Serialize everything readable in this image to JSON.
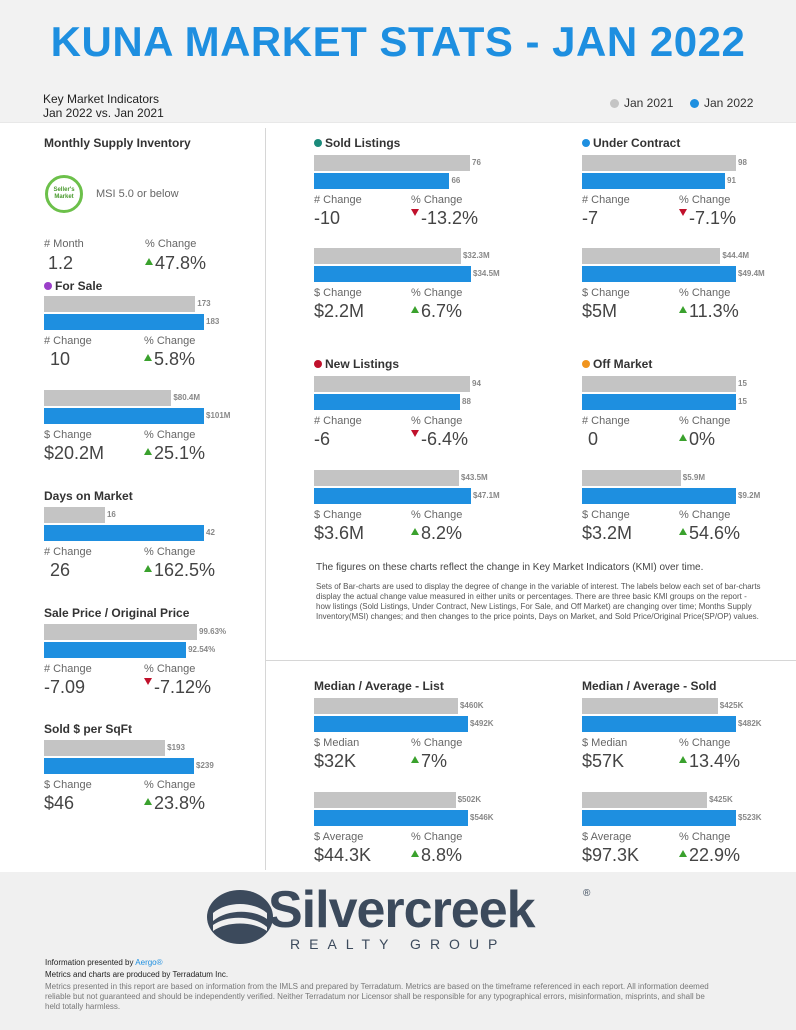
{
  "title": "KUNA MARKET STATS - JAN 2022",
  "kmi": {
    "line1": "Key Market Indicators",
    "line2": "Jan 2022 vs. Jan 2021"
  },
  "legend": {
    "jan2021": "Jan 2021",
    "jan2022": "Jan 2022",
    "color_2021": "#c4c4c4",
    "color_2022": "#1e8fe0"
  },
  "msi": {
    "title": "Monthly Supply Inventory",
    "badge": "Seller's Market",
    "text": "MSI 5.0 or below",
    "label_month": "# Month",
    "value_month": "1.2",
    "label_pct": "% Change",
    "value_pct": "47.8%"
  },
  "for_sale": {
    "title": "For Sale",
    "dot_color": "#9b3fc9",
    "count": {
      "v2021": "173",
      "v2022": "183",
      "n2021": 173,
      "n2022": 183,
      "label_change": "# Change",
      "change": "10",
      "label_pct": "% Change",
      "pct": "5.8%"
    },
    "dollar": {
      "v2021": "$80.4M",
      "v2022": "$101M",
      "n2021": 80.4,
      "n2022": 101,
      "label_change": "$ Change",
      "change": "$20.2M",
      "label_pct": "% Change",
      "pct": "25.1%"
    }
  },
  "days_on_market": {
    "title": "Days on Market",
    "v2021": "16",
    "v2022": "42",
    "n2021": 16,
    "n2022": 42,
    "label_change": "# Change",
    "change": "26",
    "label_pct": "% Change",
    "pct": "162.5%"
  },
  "sale_price": {
    "title": "Sale Price / Original Price",
    "v2021": "99.63%",
    "v2022": "92.54%",
    "n2021": 99.63,
    "n2022": 92.54,
    "label_change": "# Change",
    "change": "-7.09",
    "label_pct": "% Change",
    "pct": "-7.12%"
  },
  "sold_sqft": {
    "title": "Sold $ per SqFt",
    "v2021": "$193",
    "v2022": "$239",
    "n2021": 193,
    "n2022": 239,
    "label_change": "$ Change",
    "change": "$46",
    "label_pct": "% Change",
    "pct": "23.8%"
  },
  "sold_listings": {
    "title": "Sold Listings",
    "dot_color": "#1a8a7a",
    "count": {
      "v2021": "76",
      "v2022": "66",
      "n2021": 76,
      "n2022": 66,
      "label_change": "# Change",
      "change": "-10",
      "label_pct": "% Change",
      "pct": "-13.2%"
    },
    "dollar": {
      "v2021": "$32.3M",
      "v2022": "$34.5M",
      "n2021": 32.3,
      "n2022": 34.5,
      "label_change": "$ Change",
      "change": "$2.2M",
      "label_pct": "% Change",
      "pct": "6.7%"
    }
  },
  "under_contract": {
    "title": "Under Contract",
    "dot_color": "#1e8fe0",
    "count": {
      "v2021": "98",
      "v2022": "91",
      "n2021": 98,
      "n2022": 91,
      "label_change": "# Change",
      "change": "-7",
      "label_pct": "% Change",
      "pct": "-7.1%"
    },
    "dollar": {
      "v2021": "$44.4M",
      "v2022": "$49.4M",
      "n2021": 44.4,
      "n2022": 49.4,
      "label_change": "$ Change",
      "change": "$5M",
      "label_pct": "% Change",
      "pct": "11.3%"
    }
  },
  "new_listings": {
    "title": "New Listings",
    "dot_color": "#c0102b",
    "count": {
      "v2021": "94",
      "v2022": "88",
      "n2021": 94,
      "n2022": 88,
      "label_change": "# Change",
      "change": "-6",
      "label_pct": "% Change",
      "pct": "-6.4%"
    },
    "dollar": {
      "v2021": "$43.5M",
      "v2022": "$47.1M",
      "n2021": 43.5,
      "n2022": 47.1,
      "label_change": "$ Change",
      "change": "$3.6M",
      "label_pct": "% Change",
      "pct": "8.2%"
    }
  },
  "off_market": {
    "title": "Off Market",
    "dot_color": "#f0941e",
    "count": {
      "v2021": "15",
      "v2022": "15",
      "n2021": 15,
      "n2022": 15,
      "label_change": "# Change",
      "change": "0",
      "label_pct": "% Change",
      "pct": "0%"
    },
    "dollar": {
      "v2021": "$5.9M",
      "v2022": "$9.2M",
      "n2021": 5.9,
      "n2022": 9.2,
      "label_change": "$ Change",
      "change": "$3.2M",
      "label_pct": "% Change",
      "pct": "54.6%"
    }
  },
  "note_main": "The figures on these charts reflect the change in Key Market Indicators (KMI) over time.",
  "note_small": "Sets of Bar-charts are used to display the degree of change in the variable of interest. The labels below each set of bar-charts display the actual change value measured in either units or percentages. There are three basic KMI groups on the report - how listings (Sold Listings, Under Contract, New Listings, For Sale, and Off Market) are changing over time; Months Supply Inventory(MSI) changes; and then changes to the price points, Days on Market, and Sold Price/Original Price(SP/OP) values.",
  "median_list": {
    "title": "Median / Average - List",
    "median": {
      "v2021": "$460K",
      "v2022": "$492K",
      "n2021": 460,
      "n2022": 492,
      "label_change": "$ Median",
      "change": "$32K",
      "label_pct": "% Change",
      "pct": "7%"
    },
    "average": {
      "v2021": "$502K",
      "v2022": "$546K",
      "n2021": 502,
      "n2022": 546,
      "label_change": "$ Average",
      "change": "$44.3K",
      "label_pct": "% Change",
      "pct": "8.8%"
    }
  },
  "median_sold": {
    "title": "Median / Average - Sold",
    "median": {
      "v2021": "$425K",
      "v2022": "$482K",
      "n2021": 425,
      "n2022": 482,
      "label_change": "$ Median",
      "change": "$57K",
      "label_pct": "% Change",
      "pct": "13.4%"
    },
    "average": {
      "v2021": "$425K",
      "v2022": "$523K",
      "n2021": 425,
      "n2022": 523,
      "label_change": "$ Average",
      "change": "$97.3K",
      "label_pct": "% Change",
      "pct": "22.9%"
    }
  },
  "footer": {
    "logo_word": "Silvercreek",
    "logo_reg": "®",
    "logo_sub": "REALTY GROUP",
    "presented_prefix": "Information presented by ",
    "presented_link": "Aergo®",
    "produced": "Metrics and charts are produced by Terradatum Inc.",
    "disclaimer": "Metrics presented in this report are based on information from the IMLS and prepared by Terradatum. Metrics are based on the timeframe referenced in each report. All information deemed reliable but not guaranteed and should be independently verified. Neither Terradatum nor Licensor shall be responsible for any typographical errors, misinformation, misprints, and shall be held totally harmless."
  }
}
